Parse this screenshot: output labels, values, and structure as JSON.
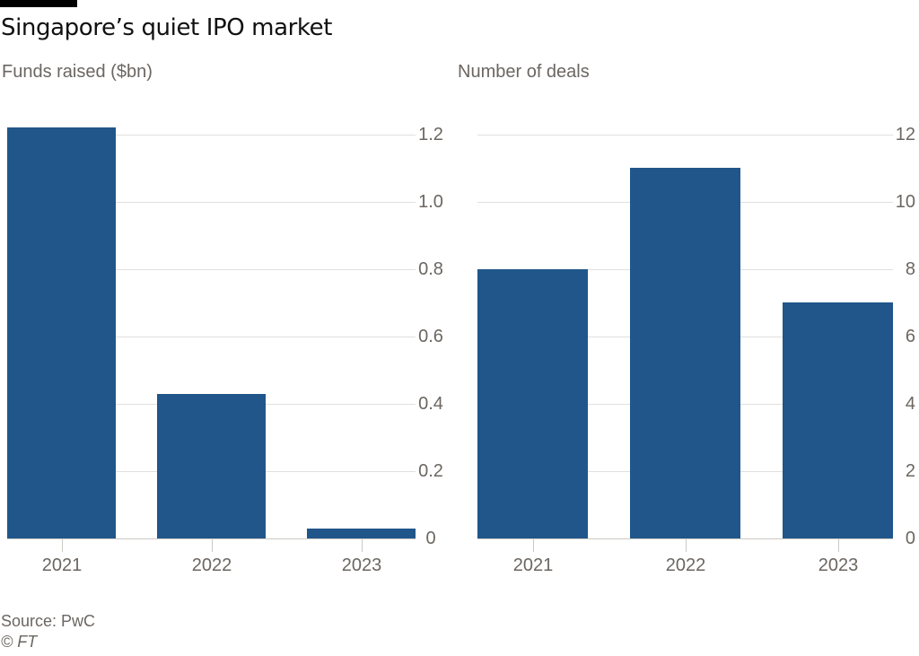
{
  "page": {
    "title": "Singapore’s quiet IPO market",
    "source": "Source: PwC",
    "copyright": "© FT"
  },
  "colors": {
    "bar": "#20568a",
    "grid": "#e2e0dd",
    "axis": "#ccc9c4",
    "text": "#6b6661",
    "title": "#111111",
    "topbar": "#000000"
  },
  "chart_data": [
    {
      "type": "bar",
      "title": "Funds raised ($bn)",
      "categories": [
        "2021",
        "2022",
        "2023"
      ],
      "values": [
        1.22,
        0.43,
        0.03
      ],
      "xlabel": "",
      "ylabel": "",
      "ylim": [
        0,
        1.227
      ],
      "yticks": [
        0,
        0.2,
        0.4,
        0.6,
        0.8,
        1.0,
        1.2
      ],
      "ytick_labels": [
        "0",
        "0.2",
        "0.4",
        "0.6",
        "0.8",
        "1.0",
        "1.2"
      ],
      "grid": "on",
      "legend": "none",
      "ytick_side": "right",
      "bar_color": "#20568a"
    },
    {
      "type": "bar",
      "title": "Number of deals",
      "categories": [
        "2021",
        "2022",
        "2023"
      ],
      "values": [
        8,
        11,
        7
      ],
      "xlabel": "",
      "ylabel": "",
      "ylim": [
        0,
        12.27
      ],
      "yticks": [
        0,
        2,
        4,
        6,
        8,
        10,
        12
      ],
      "ytick_labels": [
        "0",
        "2",
        "4",
        "6",
        "8",
        "10",
        "12"
      ],
      "grid": "on",
      "legend": "none",
      "ytick_side": "right",
      "bar_color": "#20568a"
    }
  ]
}
